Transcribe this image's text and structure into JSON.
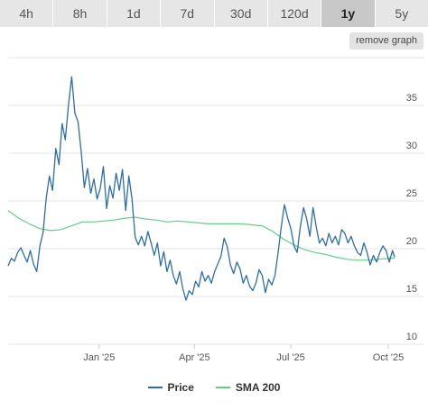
{
  "range_tabs": [
    {
      "label": "4h",
      "active": false
    },
    {
      "label": "8h",
      "active": false
    },
    {
      "label": "1d",
      "active": false
    },
    {
      "label": "7d",
      "active": false
    },
    {
      "label": "30d",
      "active": false
    },
    {
      "label": "120d",
      "active": false
    },
    {
      "label": "1y",
      "active": true
    },
    {
      "label": "5y",
      "active": false
    }
  ],
  "remove_graph_label": "remove graph",
  "colors": {
    "price": "#2d6ea8",
    "sma": "#66cc88",
    "grid": "#e4e4e4",
    "tab_bg": "#e6e6e6",
    "tab_active_bg": "#c8c8c8"
  },
  "chart_data": {
    "type": "line",
    "title": "",
    "xlabel": "",
    "ylabel": "",
    "ylim": [
      10,
      40
    ],
    "yticks": [
      10,
      15,
      20,
      25,
      30,
      35
    ],
    "xlim": [
      "2024-10-07",
      "2025-10-07"
    ],
    "xticks": [
      {
        "date": "2025-01-01",
        "label": "Jan '25"
      },
      {
        "date": "2025-04-01",
        "label": "Apr '25"
      },
      {
        "date": "2025-07-01",
        "label": "Jul '25"
      },
      {
        "date": "2025-10-01",
        "label": "Oct '25"
      }
    ],
    "grid": true,
    "legend_position": "bottom-center",
    "series": [
      {
        "name": "Price",
        "color": "#2d6ea8",
        "points": [
          [
            "2024-10-07",
            18.2
          ],
          [
            "2024-10-10",
            19.0
          ],
          [
            "2024-10-13",
            18.7
          ],
          [
            "2024-10-16",
            19.6
          ],
          [
            "2024-10-19",
            20.1
          ],
          [
            "2024-10-22",
            19.3
          ],
          [
            "2024-10-25",
            18.6
          ],
          [
            "2024-10-28",
            19.8
          ],
          [
            "2024-10-31",
            18.4
          ],
          [
            "2024-11-03",
            17.6
          ],
          [
            "2024-11-06",
            20.3
          ],
          [
            "2024-11-09",
            21.7
          ],
          [
            "2024-11-12",
            25.3
          ],
          [
            "2024-11-15",
            27.6
          ],
          [
            "2024-11-18",
            26.1
          ],
          [
            "2024-11-21",
            30.5
          ],
          [
            "2024-11-24",
            28.8
          ],
          [
            "2024-11-27",
            33.1
          ],
          [
            "2024-11-30",
            31.4
          ],
          [
            "2024-12-03",
            35.0
          ],
          [
            "2024-12-06",
            38.0
          ],
          [
            "2024-12-09",
            34.2
          ],
          [
            "2024-12-12",
            33.3
          ],
          [
            "2024-12-15",
            30.2
          ],
          [
            "2024-12-18",
            26.4
          ],
          [
            "2024-12-21",
            28.4
          ],
          [
            "2024-12-24",
            25.8
          ],
          [
            "2024-12-27",
            27.3
          ],
          [
            "2024-12-30",
            25.2
          ],
          [
            "2025-01-02",
            26.3
          ],
          [
            "2025-01-05",
            28.6
          ],
          [
            "2025-01-08",
            24.2
          ],
          [
            "2025-01-11",
            26.6
          ],
          [
            "2025-01-14",
            25.3
          ],
          [
            "2025-01-17",
            27.9
          ],
          [
            "2025-01-20",
            26.1
          ],
          [
            "2025-01-23",
            28.3
          ],
          [
            "2025-01-26",
            24.0
          ],
          [
            "2025-01-29",
            27.6
          ],
          [
            "2025-02-01",
            25.2
          ],
          [
            "2025-02-04",
            21.2
          ],
          [
            "2025-02-07",
            20.4
          ],
          [
            "2025-02-10",
            21.3
          ],
          [
            "2025-02-13",
            20.3
          ],
          [
            "2025-02-16",
            21.8
          ],
          [
            "2025-02-19",
            20.6
          ],
          [
            "2025-02-22",
            19.3
          ],
          [
            "2025-02-25",
            20.6
          ],
          [
            "2025-02-28",
            18.2
          ],
          [
            "2025-03-03",
            19.7
          ],
          [
            "2025-03-06",
            17.6
          ],
          [
            "2025-03-09",
            18.8
          ],
          [
            "2025-03-12",
            17.2
          ],
          [
            "2025-03-15",
            16.3
          ],
          [
            "2025-03-18",
            17.6
          ],
          [
            "2025-03-21",
            15.8
          ],
          [
            "2025-03-24",
            14.6
          ],
          [
            "2025-03-27",
            15.6
          ],
          [
            "2025-03-30",
            15.2
          ],
          [
            "2025-04-02",
            16.6
          ],
          [
            "2025-04-05",
            16.0
          ],
          [
            "2025-04-08",
            17.6
          ],
          [
            "2025-04-11",
            16.6
          ],
          [
            "2025-04-14",
            17.2
          ],
          [
            "2025-04-17",
            16.4
          ],
          [
            "2025-04-20",
            17.6
          ],
          [
            "2025-04-23",
            18.4
          ],
          [
            "2025-04-26",
            19.2
          ],
          [
            "2025-04-29",
            21.1
          ],
          [
            "2025-05-02",
            20.2
          ],
          [
            "2025-05-05",
            18.3
          ],
          [
            "2025-05-08",
            17.4
          ],
          [
            "2025-05-11",
            18.6
          ],
          [
            "2025-05-14",
            17.9
          ],
          [
            "2025-05-17",
            16.4
          ],
          [
            "2025-05-20",
            17.2
          ],
          [
            "2025-05-23",
            16.1
          ],
          [
            "2025-05-26",
            15.6
          ],
          [
            "2025-05-29",
            16.4
          ],
          [
            "2025-06-01",
            17.8
          ],
          [
            "2025-06-04",
            17.2
          ],
          [
            "2025-06-07",
            15.4
          ],
          [
            "2025-06-10",
            16.8
          ],
          [
            "2025-06-13",
            16.2
          ],
          [
            "2025-06-16",
            17.2
          ],
          [
            "2025-06-19",
            19.6
          ],
          [
            "2025-06-22",
            22.3
          ],
          [
            "2025-06-25",
            24.6
          ],
          [
            "2025-06-28",
            23.2
          ],
          [
            "2025-07-01",
            22.1
          ],
          [
            "2025-07-04",
            20.3
          ],
          [
            "2025-07-07",
            19.6
          ],
          [
            "2025-07-10",
            22.3
          ],
          [
            "2025-07-13",
            24.3
          ],
          [
            "2025-07-16",
            23.1
          ],
          [
            "2025-07-19",
            21.3
          ],
          [
            "2025-07-22",
            24.3
          ],
          [
            "2025-07-25",
            22.3
          ],
          [
            "2025-07-28",
            20.6
          ],
          [
            "2025-07-31",
            21.1
          ],
          [
            "2025-08-03",
            20.3
          ],
          [
            "2025-08-06",
            21.6
          ],
          [
            "2025-08-09",
            20.6
          ],
          [
            "2025-08-12",
            21.3
          ],
          [
            "2025-08-15",
            20.4
          ],
          [
            "2025-08-18",
            22.0
          ],
          [
            "2025-08-21",
            21.6
          ],
          [
            "2025-08-24",
            20.6
          ],
          [
            "2025-08-27",
            21.3
          ],
          [
            "2025-08-30",
            20.3
          ],
          [
            "2025-09-02",
            19.6
          ],
          [
            "2025-09-05",
            19.3
          ],
          [
            "2025-09-08",
            20.6
          ],
          [
            "2025-09-11",
            19.6
          ],
          [
            "2025-09-14",
            18.3
          ],
          [
            "2025-09-17",
            19.3
          ],
          [
            "2025-09-20",
            18.6
          ],
          [
            "2025-09-23",
            19.6
          ],
          [
            "2025-09-26",
            20.3
          ],
          [
            "2025-09-29",
            19.8
          ],
          [
            "2025-10-02",
            18.6
          ],
          [
            "2025-10-05",
            19.8
          ],
          [
            "2025-10-07",
            19.1
          ]
        ]
      },
      {
        "name": "SMA 200",
        "color": "#66cc88",
        "points": [
          [
            "2024-10-07",
            24.0
          ],
          [
            "2024-10-17",
            23.2
          ],
          [
            "2024-10-27",
            22.6
          ],
          [
            "2024-11-06",
            22.1
          ],
          [
            "2024-11-16",
            21.9
          ],
          [
            "2024-11-26",
            22.0
          ],
          [
            "2024-12-06",
            22.4
          ],
          [
            "2024-12-16",
            22.8
          ],
          [
            "2024-12-26",
            22.8
          ],
          [
            "2025-01-05",
            22.9
          ],
          [
            "2025-01-15",
            23.0
          ],
          [
            "2025-01-25",
            23.2
          ],
          [
            "2025-02-04",
            23.3
          ],
          [
            "2025-02-14",
            23.1
          ],
          [
            "2025-02-24",
            23.0
          ],
          [
            "2025-03-06",
            22.8
          ],
          [
            "2025-03-16",
            22.9
          ],
          [
            "2025-03-26",
            22.8
          ],
          [
            "2025-04-05",
            22.7
          ],
          [
            "2025-04-15",
            22.6
          ],
          [
            "2025-04-25",
            22.6
          ],
          [
            "2025-05-05",
            22.6
          ],
          [
            "2025-05-15",
            22.6
          ],
          [
            "2025-05-25",
            22.5
          ],
          [
            "2025-06-04",
            22.4
          ],
          [
            "2025-06-14",
            21.8
          ],
          [
            "2025-06-24",
            21.0
          ],
          [
            "2025-07-04",
            20.4
          ],
          [
            "2025-07-14",
            19.9
          ],
          [
            "2025-07-24",
            19.6
          ],
          [
            "2025-08-03",
            19.4
          ],
          [
            "2025-08-13",
            19.1
          ],
          [
            "2025-08-23",
            18.9
          ],
          [
            "2025-09-02",
            18.8
          ],
          [
            "2025-09-12",
            18.8
          ],
          [
            "2025-09-22",
            18.9
          ],
          [
            "2025-10-02",
            19.0
          ],
          [
            "2025-10-07",
            19.0
          ]
        ]
      }
    ]
  }
}
